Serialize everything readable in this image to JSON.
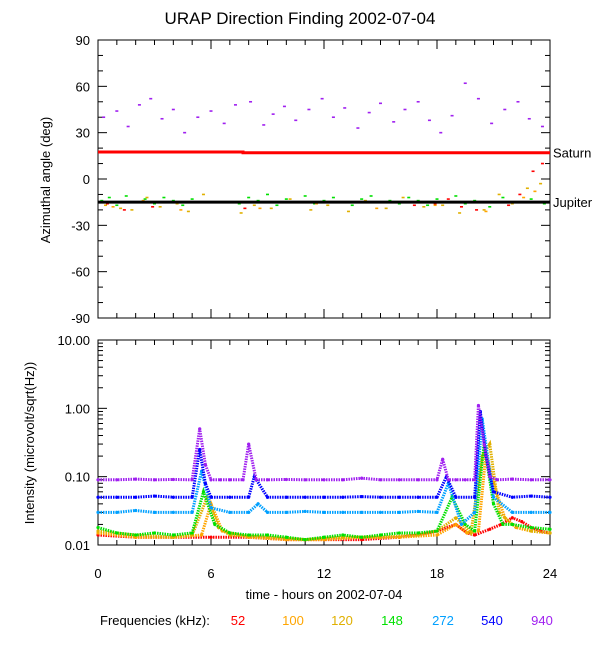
{
  "chart_data": [
    {
      "type": "scatter",
      "title": "URAP Direction Finding  2002-07-04",
      "ylabel": "Azimuthal angle (deg)",
      "xlim": [
        0,
        24
      ],
      "ylim": [
        -90,
        90
      ],
      "yticks": [
        90,
        60,
        30,
        0,
        -30,
        -60,
        -90
      ],
      "reference_lines": [
        {
          "name": "Saturn",
          "color": "#ff0000",
          "x": [
            0,
            7.7,
            7.7,
            24
          ],
          "y": [
            17.5,
            17.5,
            17,
            17
          ]
        },
        {
          "name": "Jupiter",
          "color": "#000000",
          "x": [
            0,
            24
          ],
          "y": [
            -15,
            -15
          ]
        }
      ],
      "series": [
        {
          "name": "940",
          "color": "#a020f0",
          "x": [
            0.3,
            1.0,
            1.6,
            2.2,
            2.8,
            3.4,
            4.0,
            4.6,
            5.3,
            6.0,
            6.7,
            7.3,
            8.1,
            8.8,
            9.3,
            9.9,
            10.5,
            11.2,
            11.9,
            12.5,
            13.1,
            13.8,
            14.4,
            15.0,
            15.7,
            16.3,
            17.0,
            17.6,
            18.2,
            18.8,
            19.5,
            20.2,
            20.9,
            21.6,
            22.3,
            22.9,
            23.6
          ],
          "y": [
            40,
            44,
            34,
            48,
            52,
            39,
            45,
            30,
            40,
            44,
            36,
            48,
            50,
            35,
            42,
            47,
            38,
            45,
            52,
            40,
            46,
            33,
            43,
            49,
            37,
            45,
            50,
            38,
            30,
            41,
            62,
            52,
            36,
            45,
            50,
            39,
            34
          ]
        },
        {
          "name": "148",
          "color": "#00e000",
          "x": [
            0.2,
            0.6,
            1.0,
            1.5,
            2.0,
            2.5,
            3.0,
            3.5,
            4.0,
            4.5,
            5.0,
            5.5,
            7.5,
            8.0,
            8.5,
            9.0,
            9.5,
            10.0,
            10.5,
            11.0,
            11.5,
            12.0,
            12.5,
            13.0,
            13.5,
            14.0,
            14.5,
            15.0,
            15.5,
            16.0,
            16.5,
            17.0,
            17.5,
            18.0,
            18.5,
            19.0,
            19.5,
            20.0,
            20.8,
            21.5,
            22.2,
            23.0,
            23.7
          ],
          "y": [
            -14,
            -12,
            -17,
            -11,
            -15,
            -13,
            -16,
            -12,
            -14,
            -17,
            -13,
            -15,
            -16,
            -12,
            -14,
            -10,
            -17,
            -13,
            -15,
            -11,
            -16,
            -14,
            -12,
            -15,
            -17,
            -13,
            -11,
            -15,
            -14,
            -16,
            -12,
            -14,
            -17,
            -13,
            -15,
            -11,
            -16,
            -14,
            -18,
            -12,
            -15,
            -13,
            -16
          ]
        },
        {
          "name": "120",
          "color": "#e0b000",
          "x": [
            0.4,
            1.2,
            1.8,
            2.6,
            3.3,
            4.2,
            4.8,
            5.6,
            7.6,
            8.3,
            9.2,
            10.2,
            11.3,
            12.2,
            13.3,
            14.2,
            15.3,
            16.2,
            17.3,
            18.3,
            19.2,
            20.5,
            21.3,
            22.0,
            22.8,
            23.5
          ],
          "y": [
            -17,
            -19,
            -20,
            -12,
            -18,
            -16,
            -21,
            -10,
            -22,
            -17,
            -19,
            -13,
            -20,
            -17,
            -21,
            -14,
            -19,
            -12,
            -18,
            -17,
            -22,
            -20,
            -10,
            -16,
            -6,
            -3
          ]
        },
        {
          "name": "100",
          "color": "#ffa500",
          "x": [
            0.8,
            2.4,
            4.4,
            8.6,
            11.6,
            14.8,
            17.9,
            20.6,
            22.6,
            23.2
          ],
          "y": [
            -18,
            -14,
            -20,
            -19,
            -16,
            -19,
            -17,
            -21,
            -12,
            -8
          ]
        },
        {
          "name": "52",
          "color": "#ff0000",
          "x": [
            0.5,
            1.4,
            2.9,
            7.8,
            16.8,
            17.4,
            17.9,
            18.6,
            19.3,
            20.1,
            21.8,
            22.4,
            23.1,
            23.6
          ],
          "y": [
            -16,
            -20,
            -18,
            -19,
            -17,
            -15,
            -16,
            -13,
            -18,
            -20,
            -17,
            -10,
            5,
            10
          ]
        }
      ]
    },
    {
      "type": "scatter",
      "xlabel": "time - hours on 2002-07-04",
      "ylabel": "Intensity (microvolt/sqrt(Hz))",
      "xlim": [
        0,
        24
      ],
      "ylim": [
        0.01,
        10
      ],
      "yscale": "log",
      "yticks": [
        10,
        1,
        0.1,
        0.01
      ],
      "ytick_labels": [
        "10.00",
        "1.00",
        "0.10",
        "0.01"
      ],
      "xticks": [
        0,
        6,
        12,
        18,
        24
      ],
      "xtick_labels": [
        "0",
        "6",
        "12",
        "18",
        "24"
      ],
      "legend_prefix": "Frequencies (kHz):",
      "series": [
        {
          "name": "940",
          "color": "#a020f0",
          "x": [
            0,
            1,
            2,
            3,
            4,
            5,
            5.4,
            5.7,
            6,
            6.5,
            7,
            7.7,
            8,
            8.4,
            9,
            10,
            11,
            12,
            13,
            14,
            15,
            16,
            17,
            18,
            18.3,
            18.6,
            19,
            19.5,
            20,
            20.2,
            20.5,
            20.8,
            21.2,
            22,
            23,
            24
          ],
          "y": [
            0.09,
            0.09,
            0.092,
            0.09,
            0.091,
            0.09,
            0.5,
            0.15,
            0.09,
            0.09,
            0.09,
            0.09,
            0.3,
            0.09,
            0.09,
            0.091,
            0.09,
            0.09,
            0.09,
            0.095,
            0.09,
            0.09,
            0.09,
            0.09,
            0.18,
            0.09,
            0.09,
            0.09,
            0.09,
            1.1,
            0.3,
            0.1,
            0.09,
            0.092,
            0.09,
            0.09
          ]
        },
        {
          "name": "540",
          "color": "#0000ff",
          "x": [
            0,
            1,
            2,
            3,
            4,
            5,
            5.4,
            5.7,
            6,
            7,
            8,
            8.3,
            9,
            10,
            11,
            12,
            13,
            14,
            15,
            16,
            17,
            18,
            18.5,
            19,
            20,
            20.3,
            20.6,
            21,
            22,
            23,
            24
          ],
          "y": [
            0.05,
            0.05,
            0.05,
            0.052,
            0.05,
            0.05,
            0.25,
            0.08,
            0.05,
            0.05,
            0.05,
            0.1,
            0.05,
            0.05,
            0.05,
            0.05,
            0.05,
            0.051,
            0.05,
            0.05,
            0.05,
            0.05,
            0.1,
            0.05,
            0.05,
            0.9,
            0.2,
            0.06,
            0.05,
            0.052,
            0.05
          ]
        },
        {
          "name": "272",
          "color": "#00a0ff",
          "x": [
            0,
            1,
            2,
            3,
            4,
            5,
            5.5,
            6,
            7,
            8,
            8.5,
            9,
            10,
            11,
            12,
            13,
            14,
            15,
            16,
            17,
            18,
            18.6,
            19.3,
            20,
            20.4,
            21,
            22,
            23,
            24
          ],
          "y": [
            0.03,
            0.03,
            0.032,
            0.03,
            0.03,
            0.03,
            0.12,
            0.035,
            0.03,
            0.03,
            0.04,
            0.03,
            0.03,
            0.031,
            0.03,
            0.03,
            0.03,
            0.03,
            0.03,
            0.031,
            0.03,
            0.08,
            0.02,
            0.03,
            0.7,
            0.05,
            0.03,
            0.03,
            0.03
          ]
        },
        {
          "name": "148",
          "color": "#00e000",
          "x": [
            0,
            1,
            2,
            3,
            4,
            5,
            5.6,
            6.2,
            7,
            8,
            9,
            10,
            11,
            12,
            13,
            14,
            15,
            16,
            17,
            18,
            18.8,
            19.5,
            20,
            20.5,
            21,
            21.5,
            22,
            23,
            24
          ],
          "y": [
            0.018,
            0.015,
            0.014,
            0.015,
            0.014,
            0.015,
            0.06,
            0.02,
            0.015,
            0.014,
            0.014,
            0.013,
            0.012,
            0.013,
            0.014,
            0.013,
            0.014,
            0.015,
            0.015,
            0.016,
            0.05,
            0.02,
            0.016,
            0.3,
            0.04,
            0.02,
            0.02,
            0.018,
            0.017
          ]
        },
        {
          "name": "120",
          "color": "#e0b000",
          "x": [
            0,
            2,
            4,
            5,
            5.8,
            6.4,
            7,
            9,
            11,
            13,
            15,
            17,
            18,
            19,
            19.8,
            20.4,
            20.8,
            21.3,
            22,
            23,
            24
          ],
          "y": [
            0.016,
            0.014,
            0.013,
            0.014,
            0.05,
            0.018,
            0.014,
            0.013,
            0.012,
            0.013,
            0.013,
            0.014,
            0.016,
            0.025,
            0.015,
            0.2,
            0.3,
            0.03,
            0.02,
            0.016,
            0.015
          ]
        },
        {
          "name": "100",
          "color": "#ffa500",
          "x": [
            0,
            2,
            4,
            5.5,
            6,
            6.6,
            8,
            10,
            12,
            14,
            16,
            18,
            19,
            19.6,
            20.2,
            20.6,
            21,
            21.6,
            22.2,
            23,
            24
          ],
          "y": [
            0.015,
            0.013,
            0.013,
            0.014,
            0.04,
            0.016,
            0.013,
            0.012,
            0.012,
            0.013,
            0.013,
            0.014,
            0.02,
            0.015,
            0.016,
            0.22,
            0.08,
            0.025,
            0.018,
            0.016,
            0.015
          ]
        },
        {
          "name": "52",
          "color": "#ff0000",
          "x": [
            0,
            2,
            4,
            6,
            8,
            10,
            12,
            14,
            16,
            17,
            18,
            19,
            19.6,
            20,
            20.8,
            21.4,
            22,
            22.5,
            23,
            23.5,
            24
          ],
          "y": [
            0.014,
            0.013,
            0.013,
            0.013,
            0.013,
            0.012,
            0.012,
            0.012,
            0.013,
            0.014,
            0.016,
            0.02,
            0.015,
            0.014,
            0.017,
            0.02,
            0.025,
            0.022,
            0.018,
            0.016,
            0.015
          ]
        }
      ]
    }
  ]
}
